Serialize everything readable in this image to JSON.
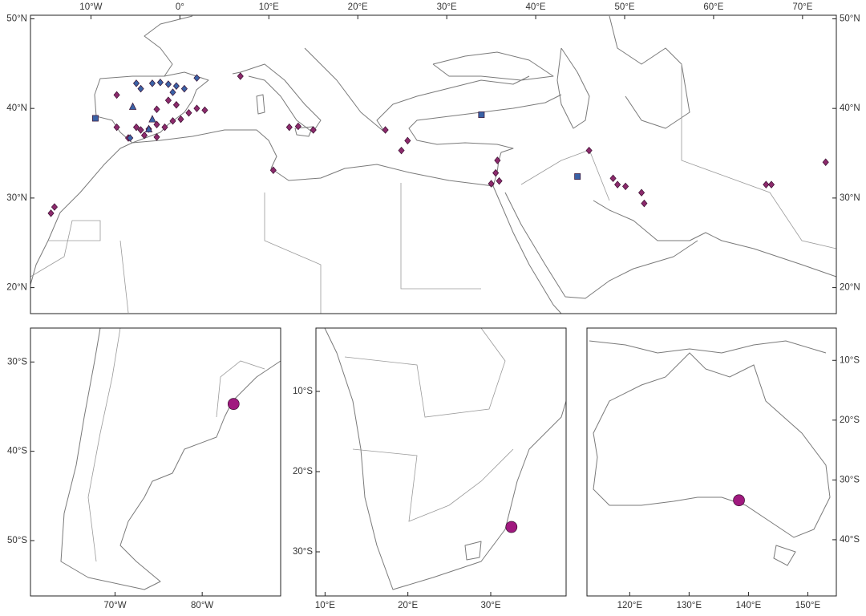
{
  "panels": [
    {
      "xaxis": "top",
      "yaxis": "both",
      "xlim": [
        -16.8,
        73.8
      ],
      "ylim": [
        17.1,
        50.4
      ],
      "xticks": [
        {
          "value": -10,
          "label": "10°W"
        },
        {
          "value": 0,
          "label": "0°"
        },
        {
          "value": 10,
          "label": "10°E"
        },
        {
          "value": 20,
          "label": "20°E"
        },
        {
          "value": 30,
          "label": "30°E"
        },
        {
          "value": 40,
          "label": "40°E"
        },
        {
          "value": 50,
          "label": "50°E"
        },
        {
          "value": 60,
          "label": "60°E"
        },
        {
          "value": 70,
          "label": "70°E"
        }
      ],
      "yticks": [
        {
          "value": 50,
          "label": "50°N"
        },
        {
          "value": 40,
          "label": "40°N"
        },
        {
          "value": 30,
          "label": "30°N"
        },
        {
          "value": 20,
          "label": "20°N"
        }
      ],
      "series": [
        {
          "marker": "diamond",
          "color": "#8c2a6c",
          "x": [
            -14.1,
            -14.5,
            -7.1,
            -7.1,
            -4.9,
            -5.8,
            -4.4,
            -3.5,
            -2.6,
            -1.7,
            -4.0,
            -2.6,
            -0.8,
            0.1,
            1.0,
            1.9,
            2.8,
            -1.3,
            -0.4,
            -2.6,
            6.8,
            10.5,
            12.3,
            13.3,
            15.0,
            23.1,
            24.9,
            25.6,
            35.7,
            35.5,
            35.9,
            35.0,
            46.0,
            48.7,
            49.2,
            50.1,
            51.9,
            52.2,
            65.9,
            66.5,
            72.6
          ],
          "y": [
            29.0,
            28.3,
            41.5,
            37.9,
            37.9,
            36.7,
            37.6,
            37.7,
            38.2,
            37.9,
            37.0,
            36.8,
            38.6,
            38.8,
            39.5,
            40.0,
            39.8,
            40.9,
            40.4,
            39.9,
            43.6,
            33.1,
            37.9,
            38.0,
            37.6,
            37.6,
            35.3,
            36.4,
            34.2,
            32.8,
            31.9,
            31.6,
            35.3,
            32.2,
            31.5,
            31.3,
            30.6,
            29.4,
            31.5,
            31.5,
            34.0
          ]
        },
        {
          "marker": "diamond",
          "color": "#3a62a6",
          "x": [
            -4.9,
            -3.1,
            -2.2,
            -1.3,
            -0.4,
            0.5,
            1.9,
            -0.8,
            -4.4,
            -5.6
          ],
          "y": [
            42.8,
            42.8,
            42.9,
            42.7,
            42.5,
            42.2,
            43.4,
            41.8,
            42.2,
            36.7
          ]
        },
        {
          "marker": "triangle",
          "color": "#3a62a6",
          "x": [
            -5.3,
            -3.1,
            -3.5
          ],
          "y": [
            40.2,
            38.8,
            37.7
          ]
        },
        {
          "marker": "square",
          "color": "#3a62a6",
          "x": [
            33.9,
            44.7,
            -9.5
          ],
          "y": [
            39.3,
            32.4,
            38.9
          ]
        }
      ]
    },
    {
      "xaxis": "bottom",
      "yaxis": "left",
      "xlim": [
        60.3,
        89
      ],
      "ylim": [
        -56.2,
        -26.2
      ],
      "xticks": [
        {
          "value": 70,
          "label": "70°W"
        },
        {
          "value": 80,
          "label": "80°W"
        }
      ],
      "yticks": [
        {
          "value": -30,
          "label": "30°S"
        },
        {
          "value": -40,
          "label": "40°S"
        },
        {
          "value": -50,
          "label": "50°S"
        }
      ],
      "series": [
        {
          "marker": "circle",
          "color": "#a0197f",
          "x": [
            83.6
          ],
          "y": [
            -34.7
          ]
        }
      ]
    },
    {
      "xaxis": "bottom",
      "yaxis": "left",
      "xlim": [
        8.9,
        39.1
      ],
      "ylim": [
        -35.5,
        -2.1
      ],
      "xticks": [
        {
          "value": 10,
          "label": "10°E"
        },
        {
          "value": 20,
          "label": "20°E"
        },
        {
          "value": 30,
          "label": "30°E"
        }
      ],
      "yticks": [
        {
          "value": -10,
          "label": "10°S"
        },
        {
          "value": -20,
          "label": "20°S"
        },
        {
          "value": -30,
          "label": "30°S"
        }
      ],
      "series": [
        {
          "marker": "circle",
          "color": "#a0197f",
          "x": [
            32.5
          ],
          "y": [
            -26.9
          ]
        }
      ]
    },
    {
      "xaxis": "bottom",
      "yaxis": "right",
      "xlim": [
        112.8,
        154.8
      ],
      "ylim": [
        -49.4,
        -4.6
      ],
      "xticks": [
        {
          "value": 120,
          "label": "120°E"
        },
        {
          "value": 130,
          "label": "130°E"
        },
        {
          "value": 140,
          "label": "140°E"
        },
        {
          "value": 150,
          "label": "150°E"
        }
      ],
      "yticks": [
        {
          "value": -10,
          "label": "10°S"
        },
        {
          "value": -20,
          "label": "20°S"
        },
        {
          "value": -30,
          "label": "30°S"
        },
        {
          "value": -40,
          "label": "40°S"
        }
      ],
      "series": [
        {
          "marker": "circle",
          "color": "#a0197f",
          "x": [
            138.4
          ],
          "y": [
            -33.4
          ]
        }
      ]
    }
  ]
}
